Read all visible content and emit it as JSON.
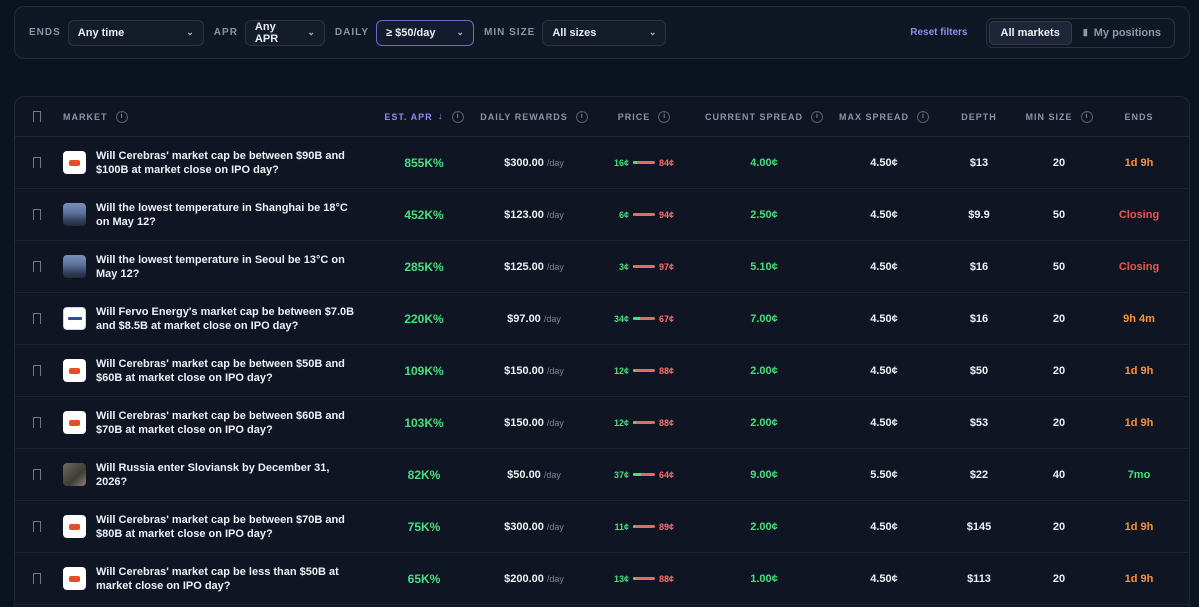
{
  "filters": {
    "ends_label": "ENDS",
    "ends_value": "Any time",
    "apr_label": "APR",
    "apr_value": "Any APR",
    "daily_label": "DAILY",
    "daily_value": "≥ $50/day",
    "min_size_label": "MIN SIZE",
    "min_size_value": "All sizes",
    "reset_label": "Reset filters",
    "all_markets_label": "All markets",
    "my_positions_label": "My positions"
  },
  "columns": {
    "market": "MARKET",
    "est_apr": "EST. APR",
    "daily_rewards": "DAILY REWARDS",
    "price": "PRICE",
    "current_spread": "CURRENT SPREAD",
    "max_spread": "MAX SPREAD",
    "depth": "DEPTH",
    "min_size": "MIN SIZE",
    "ends": "ENDS"
  },
  "colors": {
    "positive": "#4ade80",
    "negative": "#f87171",
    "ends_soon": "#fb923c",
    "closing": "#f05252",
    "long": "#4ade80",
    "accent": "#8f8cf0"
  },
  "rows": [
    {
      "thumb": "cerebras",
      "title": "Will Cerebras' market cap be between $90B and $100B at market close on IPO day?",
      "apr": "855K%",
      "daily": "$300.00",
      "per": "/day",
      "yes": "16¢",
      "no": "84¢",
      "yes_frac": 0.16,
      "current_spread": "4.00¢",
      "max_spread": "4.50¢",
      "depth": "$13",
      "min_size": "20",
      "ends": "1d 9h",
      "ends_color": "#fb923c"
    },
    {
      "thumb": "city",
      "title": "Will the lowest temperature in Shanghai be 18°C on May 12?",
      "apr": "452K%",
      "daily": "$123.00",
      "per": "/day",
      "yes": "6¢",
      "no": "94¢",
      "yes_frac": 0.06,
      "current_spread": "2.50¢",
      "max_spread": "4.50¢",
      "depth": "$9.9",
      "min_size": "50",
      "ends": "Closing",
      "ends_color": "#f05252"
    },
    {
      "thumb": "city",
      "title": "Will the lowest temperature in Seoul be 13°C on May 12?",
      "apr": "285K%",
      "daily": "$125.00",
      "per": "/day",
      "yes": "3¢",
      "no": "97¢",
      "yes_frac": 0.03,
      "current_spread": "5.10¢",
      "max_spread": "4.50¢",
      "depth": "$16",
      "min_size": "50",
      "ends": "Closing",
      "ends_color": "#f05252"
    },
    {
      "thumb": "fervo",
      "title": "Will Fervo Energy's market cap be between $7.0B and $8.5B at market close on IPO day?",
      "apr": "220K%",
      "daily": "$97.00",
      "per": "/day",
      "yes": "34¢",
      "no": "67¢",
      "yes_frac": 0.34,
      "current_spread": "7.00¢",
      "max_spread": "4.50¢",
      "depth": "$16",
      "min_size": "20",
      "ends": "9h 4m",
      "ends_color": "#fb923c"
    },
    {
      "thumb": "cerebras",
      "title": "Will Cerebras' market cap be between $50B and $60B at market close on IPO day?",
      "apr": "109K%",
      "daily": "$150.00",
      "per": "/day",
      "yes": "12¢",
      "no": "88¢",
      "yes_frac": 0.12,
      "current_spread": "2.00¢",
      "max_spread": "4.50¢",
      "depth": "$50",
      "min_size": "20",
      "ends": "1d 9h",
      "ends_color": "#fb923c"
    },
    {
      "thumb": "cerebras",
      "title": "Will Cerebras' market cap be between $60B and $70B at market close on IPO day?",
      "apr": "103K%",
      "daily": "$150.00",
      "per": "/day",
      "yes": "12¢",
      "no": "88¢",
      "yes_frac": 0.12,
      "current_spread": "2.00¢",
      "max_spread": "4.50¢",
      "depth": "$53",
      "min_size": "20",
      "ends": "1d 9h",
      "ends_color": "#fb923c"
    },
    {
      "thumb": "war",
      "title": "Will Russia enter Sloviansk by December 31, 2026?",
      "apr": "82K%",
      "daily": "$50.00",
      "per": "/day",
      "yes": "37¢",
      "no": "64¢",
      "yes_frac": 0.37,
      "current_spread": "9.00¢",
      "max_spread": "5.50¢",
      "depth": "$22",
      "min_size": "40",
      "ends": "7mo",
      "ends_color": "#4ade80"
    },
    {
      "thumb": "cerebras",
      "title": "Will Cerebras' market cap be between $70B and $80B at market close on IPO day?",
      "apr": "75K%",
      "daily": "$300.00",
      "per": "/day",
      "yes": "11¢",
      "no": "89¢",
      "yes_frac": 0.11,
      "current_spread": "2.00¢",
      "max_spread": "4.50¢",
      "depth": "$145",
      "min_size": "20",
      "ends": "1d 9h",
      "ends_color": "#fb923c"
    },
    {
      "thumb": "cerebras",
      "title": "Will Cerebras' market cap be less than $50B at market close on IPO day?",
      "apr": "65K%",
      "daily": "$200.00",
      "per": "/day",
      "yes": "13¢",
      "no": "88¢",
      "yes_frac": 0.13,
      "current_spread": "1.00¢",
      "max_spread": "4.50¢",
      "depth": "$113",
      "min_size": "20",
      "ends": "1d 9h",
      "ends_color": "#fb923c"
    }
  ]
}
